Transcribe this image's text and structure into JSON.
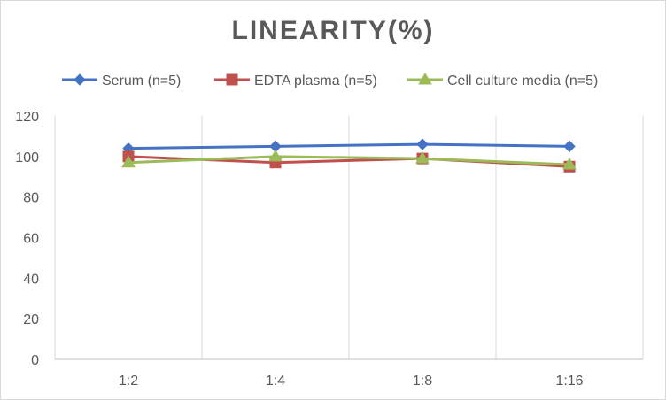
{
  "chart_data": {
    "type": "line",
    "title": "LINEARITY(%)",
    "xlabel": "",
    "ylabel": "",
    "categories": [
      "1:2",
      "1:4",
      "1:8",
      "1:16"
    ],
    "ylim": [
      0,
      120
    ],
    "yticks": [
      0,
      20,
      40,
      60,
      80,
      100,
      120
    ],
    "grid": "vertical category separators",
    "legend_position": "top",
    "series": [
      {
        "name": "Serum (n=5)",
        "values": [
          104,
          105,
          106,
          105
        ],
        "color": "#4472c4",
        "marker": "diamond"
      },
      {
        "name": "EDTA plasma (n=5)",
        "values": [
          100,
          97,
          99,
          95
        ],
        "color": "#c0504d",
        "marker": "square"
      },
      {
        "name": "Cell culture media (n=5)",
        "values": [
          97,
          100,
          99,
          96
        ],
        "color": "#9bbb59",
        "marker": "triangle"
      }
    ]
  }
}
